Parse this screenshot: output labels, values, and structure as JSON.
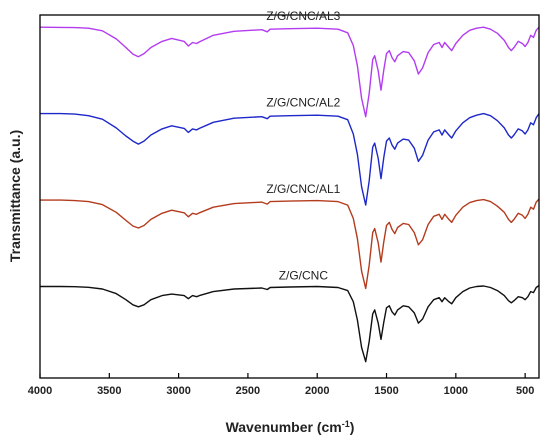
{
  "chart_data": {
    "type": "line",
    "title": "",
    "xlabel": "Wavenumber (cm",
    "xlabel_sup": "-1",
    "xlabel_tail": ")",
    "ylabel": "Transmittance (a.u.)",
    "xlim": [
      4000,
      400
    ],
    "x_reversed": true,
    "y_ticks_shown": false,
    "x_ticks": [
      4000,
      3500,
      3000,
      2500,
      2000,
      1500,
      1000,
      500
    ],
    "grid": false,
    "legend": "none",
    "series": [
      {
        "name": "Z/G/CNC/AL3",
        "color": "#b43cf0",
        "offset": 0,
        "points": [
          [
            4000,
            0.0
          ],
          [
            3850,
            -0.002
          ],
          [
            3750,
            -0.004
          ],
          [
            3650,
            -0.01
          ],
          [
            3550,
            -0.035
          ],
          [
            3450,
            -0.115
          ],
          [
            3380,
            -0.2
          ],
          [
            3330,
            -0.265
          ],
          [
            3290,
            -0.29
          ],
          [
            3250,
            -0.26
          ],
          [
            3200,
            -0.2
          ],
          [
            3120,
            -0.14
          ],
          [
            3050,
            -0.11
          ],
          [
            2960,
            -0.14
          ],
          [
            2930,
            -0.185
          ],
          [
            2900,
            -0.15
          ],
          [
            2870,
            -0.16
          ],
          [
            2850,
            -0.145
          ],
          [
            2750,
            -0.08
          ],
          [
            2600,
            -0.04
          ],
          [
            2400,
            -0.025
          ],
          [
            2360,
            -0.045
          ],
          [
            2340,
            -0.02
          ],
          [
            2200,
            -0.015
          ],
          [
            2000,
            -0.01
          ],
          [
            1850,
            -0.02
          ],
          [
            1780,
            -0.055
          ],
          [
            1740,
            -0.18
          ],
          [
            1710,
            -0.38
          ],
          [
            1680,
            -0.7
          ],
          [
            1650,
            -0.88
          ],
          [
            1625,
            -0.65
          ],
          [
            1600,
            -0.32
          ],
          [
            1585,
            -0.28
          ],
          [
            1560,
            -0.43
          ],
          [
            1540,
            -0.62
          ],
          [
            1520,
            -0.42
          ],
          [
            1500,
            -0.26
          ],
          [
            1480,
            -0.23
          ],
          [
            1460,
            -0.3
          ],
          [
            1440,
            -0.34
          ],
          [
            1420,
            -0.28
          ],
          [
            1380,
            -0.24
          ],
          [
            1340,
            -0.25
          ],
          [
            1300,
            -0.33
          ],
          [
            1270,
            -0.46
          ],
          [
            1240,
            -0.4
          ],
          [
            1200,
            -0.25
          ],
          [
            1160,
            -0.17
          ],
          [
            1120,
            -0.15
          ],
          [
            1100,
            -0.2
          ],
          [
            1080,
            -0.15
          ],
          [
            1050,
            -0.2
          ],
          [
            1030,
            -0.23
          ],
          [
            1000,
            -0.16
          ],
          [
            950,
            -0.08
          ],
          [
            900,
            -0.03
          ],
          [
            850,
            -0.01
          ],
          [
            800,
            0.0
          ],
          [
            750,
            -0.02
          ],
          [
            700,
            -0.06
          ],
          [
            650,
            -0.13
          ],
          [
            620,
            -0.2
          ],
          [
            600,
            -0.23
          ],
          [
            580,
            -0.2
          ],
          [
            550,
            -0.14
          ],
          [
            520,
            -0.16
          ],
          [
            500,
            -0.19
          ],
          [
            480,
            -0.15
          ],
          [
            460,
            -0.08
          ],
          [
            440,
            -0.1
          ],
          [
            420,
            -0.03
          ],
          [
            400,
            0.0
          ]
        ]
      },
      {
        "name": "Z/G/CNC/AL2",
        "color": "#1e28c8",
        "offset": -0.85,
        "points": [
          [
            4000,
            0.0
          ],
          [
            3850,
            0.0
          ],
          [
            3750,
            -0.005
          ],
          [
            3650,
            -0.02
          ],
          [
            3550,
            -0.055
          ],
          [
            3450,
            -0.14
          ],
          [
            3380,
            -0.22
          ],
          [
            3330,
            -0.27
          ],
          [
            3290,
            -0.3
          ],
          [
            3250,
            -0.27
          ],
          [
            3200,
            -0.21
          ],
          [
            3120,
            -0.15
          ],
          [
            3050,
            -0.12
          ],
          [
            2960,
            -0.145
          ],
          [
            2930,
            -0.185
          ],
          [
            2900,
            -0.15
          ],
          [
            2870,
            -0.16
          ],
          [
            2850,
            -0.145
          ],
          [
            2750,
            -0.085
          ],
          [
            2600,
            -0.045
          ],
          [
            2400,
            -0.03
          ],
          [
            2360,
            -0.05
          ],
          [
            2340,
            -0.025
          ],
          [
            2200,
            -0.02
          ],
          [
            2000,
            -0.015
          ],
          [
            1850,
            -0.025
          ],
          [
            1780,
            -0.06
          ],
          [
            1740,
            -0.2
          ],
          [
            1710,
            -0.4
          ],
          [
            1680,
            -0.72
          ],
          [
            1650,
            -0.9
          ],
          [
            1625,
            -0.66
          ],
          [
            1600,
            -0.33
          ],
          [
            1585,
            -0.29
          ],
          [
            1560,
            -0.44
          ],
          [
            1540,
            -0.64
          ],
          [
            1520,
            -0.43
          ],
          [
            1500,
            -0.27
          ],
          [
            1480,
            -0.24
          ],
          [
            1460,
            -0.31
          ],
          [
            1440,
            -0.35
          ],
          [
            1420,
            -0.29
          ],
          [
            1380,
            -0.25
          ],
          [
            1340,
            -0.26
          ],
          [
            1300,
            -0.34
          ],
          [
            1270,
            -0.47
          ],
          [
            1240,
            -0.41
          ],
          [
            1200,
            -0.26
          ],
          [
            1160,
            -0.18
          ],
          [
            1120,
            -0.16
          ],
          [
            1100,
            -0.21
          ],
          [
            1080,
            -0.16
          ],
          [
            1050,
            -0.21
          ],
          [
            1030,
            -0.24
          ],
          [
            1000,
            -0.17
          ],
          [
            950,
            -0.09
          ],
          [
            900,
            -0.04
          ],
          [
            850,
            -0.015
          ],
          [
            800,
            0.0
          ],
          [
            750,
            -0.02
          ],
          [
            700,
            -0.07
          ],
          [
            650,
            -0.14
          ],
          [
            620,
            -0.21
          ],
          [
            600,
            -0.24
          ],
          [
            580,
            -0.21
          ],
          [
            550,
            -0.15
          ],
          [
            520,
            -0.17
          ],
          [
            500,
            -0.2
          ],
          [
            480,
            -0.16
          ],
          [
            460,
            -0.09
          ],
          [
            440,
            -0.11
          ],
          [
            420,
            -0.04
          ],
          [
            400,
            0.0
          ]
        ]
      },
      {
        "name": "Z/G/CNC/AL1",
        "color": "#b43c1e",
        "offset": -1.7,
        "points": [
          [
            4000,
            0.0
          ],
          [
            3850,
            0.0
          ],
          [
            3750,
            -0.005
          ],
          [
            3650,
            -0.015
          ],
          [
            3550,
            -0.045
          ],
          [
            3450,
            -0.12
          ],
          [
            3380,
            -0.2
          ],
          [
            3330,
            -0.255
          ],
          [
            3290,
            -0.275
          ],
          [
            3250,
            -0.25
          ],
          [
            3200,
            -0.19
          ],
          [
            3120,
            -0.13
          ],
          [
            3050,
            -0.1
          ],
          [
            2960,
            -0.125
          ],
          [
            2930,
            -0.165
          ],
          [
            2900,
            -0.13
          ],
          [
            2870,
            -0.14
          ],
          [
            2850,
            -0.125
          ],
          [
            2750,
            -0.07
          ],
          [
            2600,
            -0.035
          ],
          [
            2400,
            -0.02
          ],
          [
            2360,
            -0.04
          ],
          [
            2340,
            -0.015
          ],
          [
            2200,
            -0.01
          ],
          [
            2000,
            -0.005
          ],
          [
            1850,
            -0.015
          ],
          [
            1780,
            -0.05
          ],
          [
            1740,
            -0.18
          ],
          [
            1710,
            -0.38
          ],
          [
            1680,
            -0.7
          ],
          [
            1650,
            -0.87
          ],
          [
            1625,
            -0.64
          ],
          [
            1600,
            -0.32
          ],
          [
            1585,
            -0.28
          ],
          [
            1560,
            -0.42
          ],
          [
            1540,
            -0.61
          ],
          [
            1520,
            -0.41
          ],
          [
            1500,
            -0.25
          ],
          [
            1480,
            -0.22
          ],
          [
            1460,
            -0.29
          ],
          [
            1440,
            -0.33
          ],
          [
            1420,
            -0.27
          ],
          [
            1380,
            -0.23
          ],
          [
            1340,
            -0.24
          ],
          [
            1300,
            -0.32
          ],
          [
            1270,
            -0.44
          ],
          [
            1240,
            -0.39
          ],
          [
            1200,
            -0.24
          ],
          [
            1160,
            -0.16
          ],
          [
            1120,
            -0.14
          ],
          [
            1100,
            -0.19
          ],
          [
            1080,
            -0.14
          ],
          [
            1050,
            -0.19
          ],
          [
            1030,
            -0.22
          ],
          [
            1000,
            -0.15
          ],
          [
            950,
            -0.07
          ],
          [
            900,
            -0.025
          ],
          [
            850,
            -0.005
          ],
          [
            800,
            0.005
          ],
          [
            750,
            -0.015
          ],
          [
            700,
            -0.06
          ],
          [
            650,
            -0.12
          ],
          [
            620,
            -0.19
          ],
          [
            600,
            -0.22
          ],
          [
            580,
            -0.19
          ],
          [
            550,
            -0.13
          ],
          [
            520,
            -0.15
          ],
          [
            500,
            -0.18
          ],
          [
            480,
            -0.14
          ],
          [
            460,
            -0.07
          ],
          [
            440,
            -0.09
          ],
          [
            420,
            -0.02
          ],
          [
            400,
            0.01
          ]
        ]
      },
      {
        "name": "Z/G/CNC",
        "color": "#111111",
        "offset": -2.55,
        "points": [
          [
            4000,
            0.0
          ],
          [
            3850,
            0.0
          ],
          [
            3750,
            -0.002
          ],
          [
            3650,
            -0.008
          ],
          [
            3550,
            -0.025
          ],
          [
            3450,
            -0.07
          ],
          [
            3380,
            -0.13
          ],
          [
            3330,
            -0.18
          ],
          [
            3290,
            -0.2
          ],
          [
            3250,
            -0.18
          ],
          [
            3200,
            -0.13
          ],
          [
            3120,
            -0.09
          ],
          [
            3050,
            -0.075
          ],
          [
            2960,
            -0.09
          ],
          [
            2930,
            -0.12
          ],
          [
            2900,
            -0.09
          ],
          [
            2870,
            -0.1
          ],
          [
            2850,
            -0.09
          ],
          [
            2750,
            -0.05
          ],
          [
            2600,
            -0.025
          ],
          [
            2400,
            -0.015
          ],
          [
            2360,
            -0.03
          ],
          [
            2340,
            -0.01
          ],
          [
            2200,
            -0.005
          ],
          [
            2000,
            0.0
          ],
          [
            1850,
            -0.01
          ],
          [
            1780,
            -0.04
          ],
          [
            1740,
            -0.15
          ],
          [
            1710,
            -0.33
          ],
          [
            1680,
            -0.6
          ],
          [
            1650,
            -0.74
          ],
          [
            1625,
            -0.54
          ],
          [
            1600,
            -0.27
          ],
          [
            1585,
            -0.23
          ],
          [
            1560,
            -0.36
          ],
          [
            1540,
            -0.52
          ],
          [
            1520,
            -0.35
          ],
          [
            1500,
            -0.21
          ],
          [
            1480,
            -0.19
          ],
          [
            1460,
            -0.25
          ],
          [
            1440,
            -0.28
          ],
          [
            1420,
            -0.23
          ],
          [
            1380,
            -0.19
          ],
          [
            1340,
            -0.2
          ],
          [
            1300,
            -0.26
          ],
          [
            1270,
            -0.36
          ],
          [
            1240,
            -0.32
          ],
          [
            1200,
            -0.2
          ],
          [
            1160,
            -0.13
          ],
          [
            1120,
            -0.11
          ],
          [
            1100,
            -0.15
          ],
          [
            1080,
            -0.11
          ],
          [
            1050,
            -0.15
          ],
          [
            1030,
            -0.17
          ],
          [
            1000,
            -0.11
          ],
          [
            950,
            -0.05
          ],
          [
            900,
            -0.015
          ],
          [
            850,
            0.0
          ],
          [
            800,
            0.005
          ],
          [
            750,
            -0.01
          ],
          [
            700,
            -0.04
          ],
          [
            650,
            -0.09
          ],
          [
            620,
            -0.14
          ],
          [
            600,
            -0.16
          ],
          [
            580,
            -0.14
          ],
          [
            550,
            -0.1
          ],
          [
            520,
            -0.11
          ],
          [
            500,
            -0.13
          ],
          [
            480,
            -0.1
          ],
          [
            460,
            -0.05
          ],
          [
            440,
            -0.06
          ],
          [
            420,
            -0.01
          ],
          [
            400,
            0.01
          ]
        ]
      }
    ]
  }
}
